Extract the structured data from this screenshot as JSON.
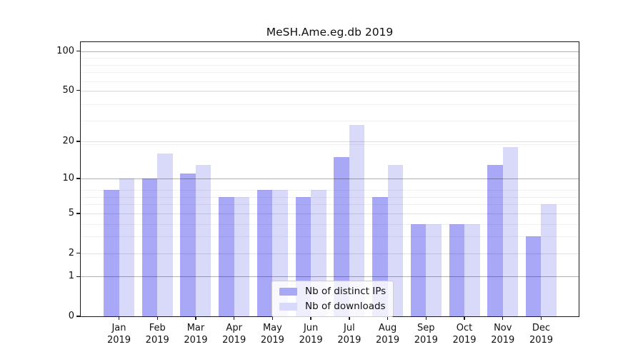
{
  "figure_title": "MeSH.Ame.eg.db 2019",
  "chart_data": {
    "type": "bar",
    "title": "MeSH.Ame.eg.db 2019",
    "categories": [
      "Jan",
      "Feb",
      "Mar",
      "Apr",
      "May",
      "Jun",
      "Jul",
      "Aug",
      "Sep",
      "Oct",
      "Nov",
      "Dec"
    ],
    "x_year_label": "2019",
    "series": [
      {
        "name": "Nb of distinct IPs",
        "color": "#a8a8f6",
        "values": [
          8,
          10,
          11,
          7,
          8,
          7,
          15,
          7,
          4,
          4,
          13,
          3
        ]
      },
      {
        "name": "Nb of downloads",
        "color": "#d9d9f9",
        "values": [
          10,
          16,
          13,
          7,
          8,
          8,
          27,
          13,
          4,
          4,
          18,
          6
        ]
      }
    ],
    "y_axis": {
      "scale": "log10(value+1)",
      "ticks": [
        100,
        50,
        20,
        10,
        5,
        2,
        1,
        0
      ],
      "tick_labels": [
        "100",
        "50",
        "20",
        "10",
        "5",
        "2",
        "1",
        "0"
      ],
      "top_value": 116,
      "gridlines_dark": [
        1,
        10,
        100
      ],
      "gridlines_light": [
        2,
        5,
        20,
        50
      ],
      "gridlines_minor": [
        3,
        4,
        6,
        7,
        8,
        19,
        29,
        39,
        49,
        59,
        69,
        79,
        89
      ]
    },
    "grid": "on",
    "legend": {
      "entries": [
        "Nb of distinct IPs",
        "Nb of downloads"
      ],
      "position": "inside lower center"
    }
  }
}
